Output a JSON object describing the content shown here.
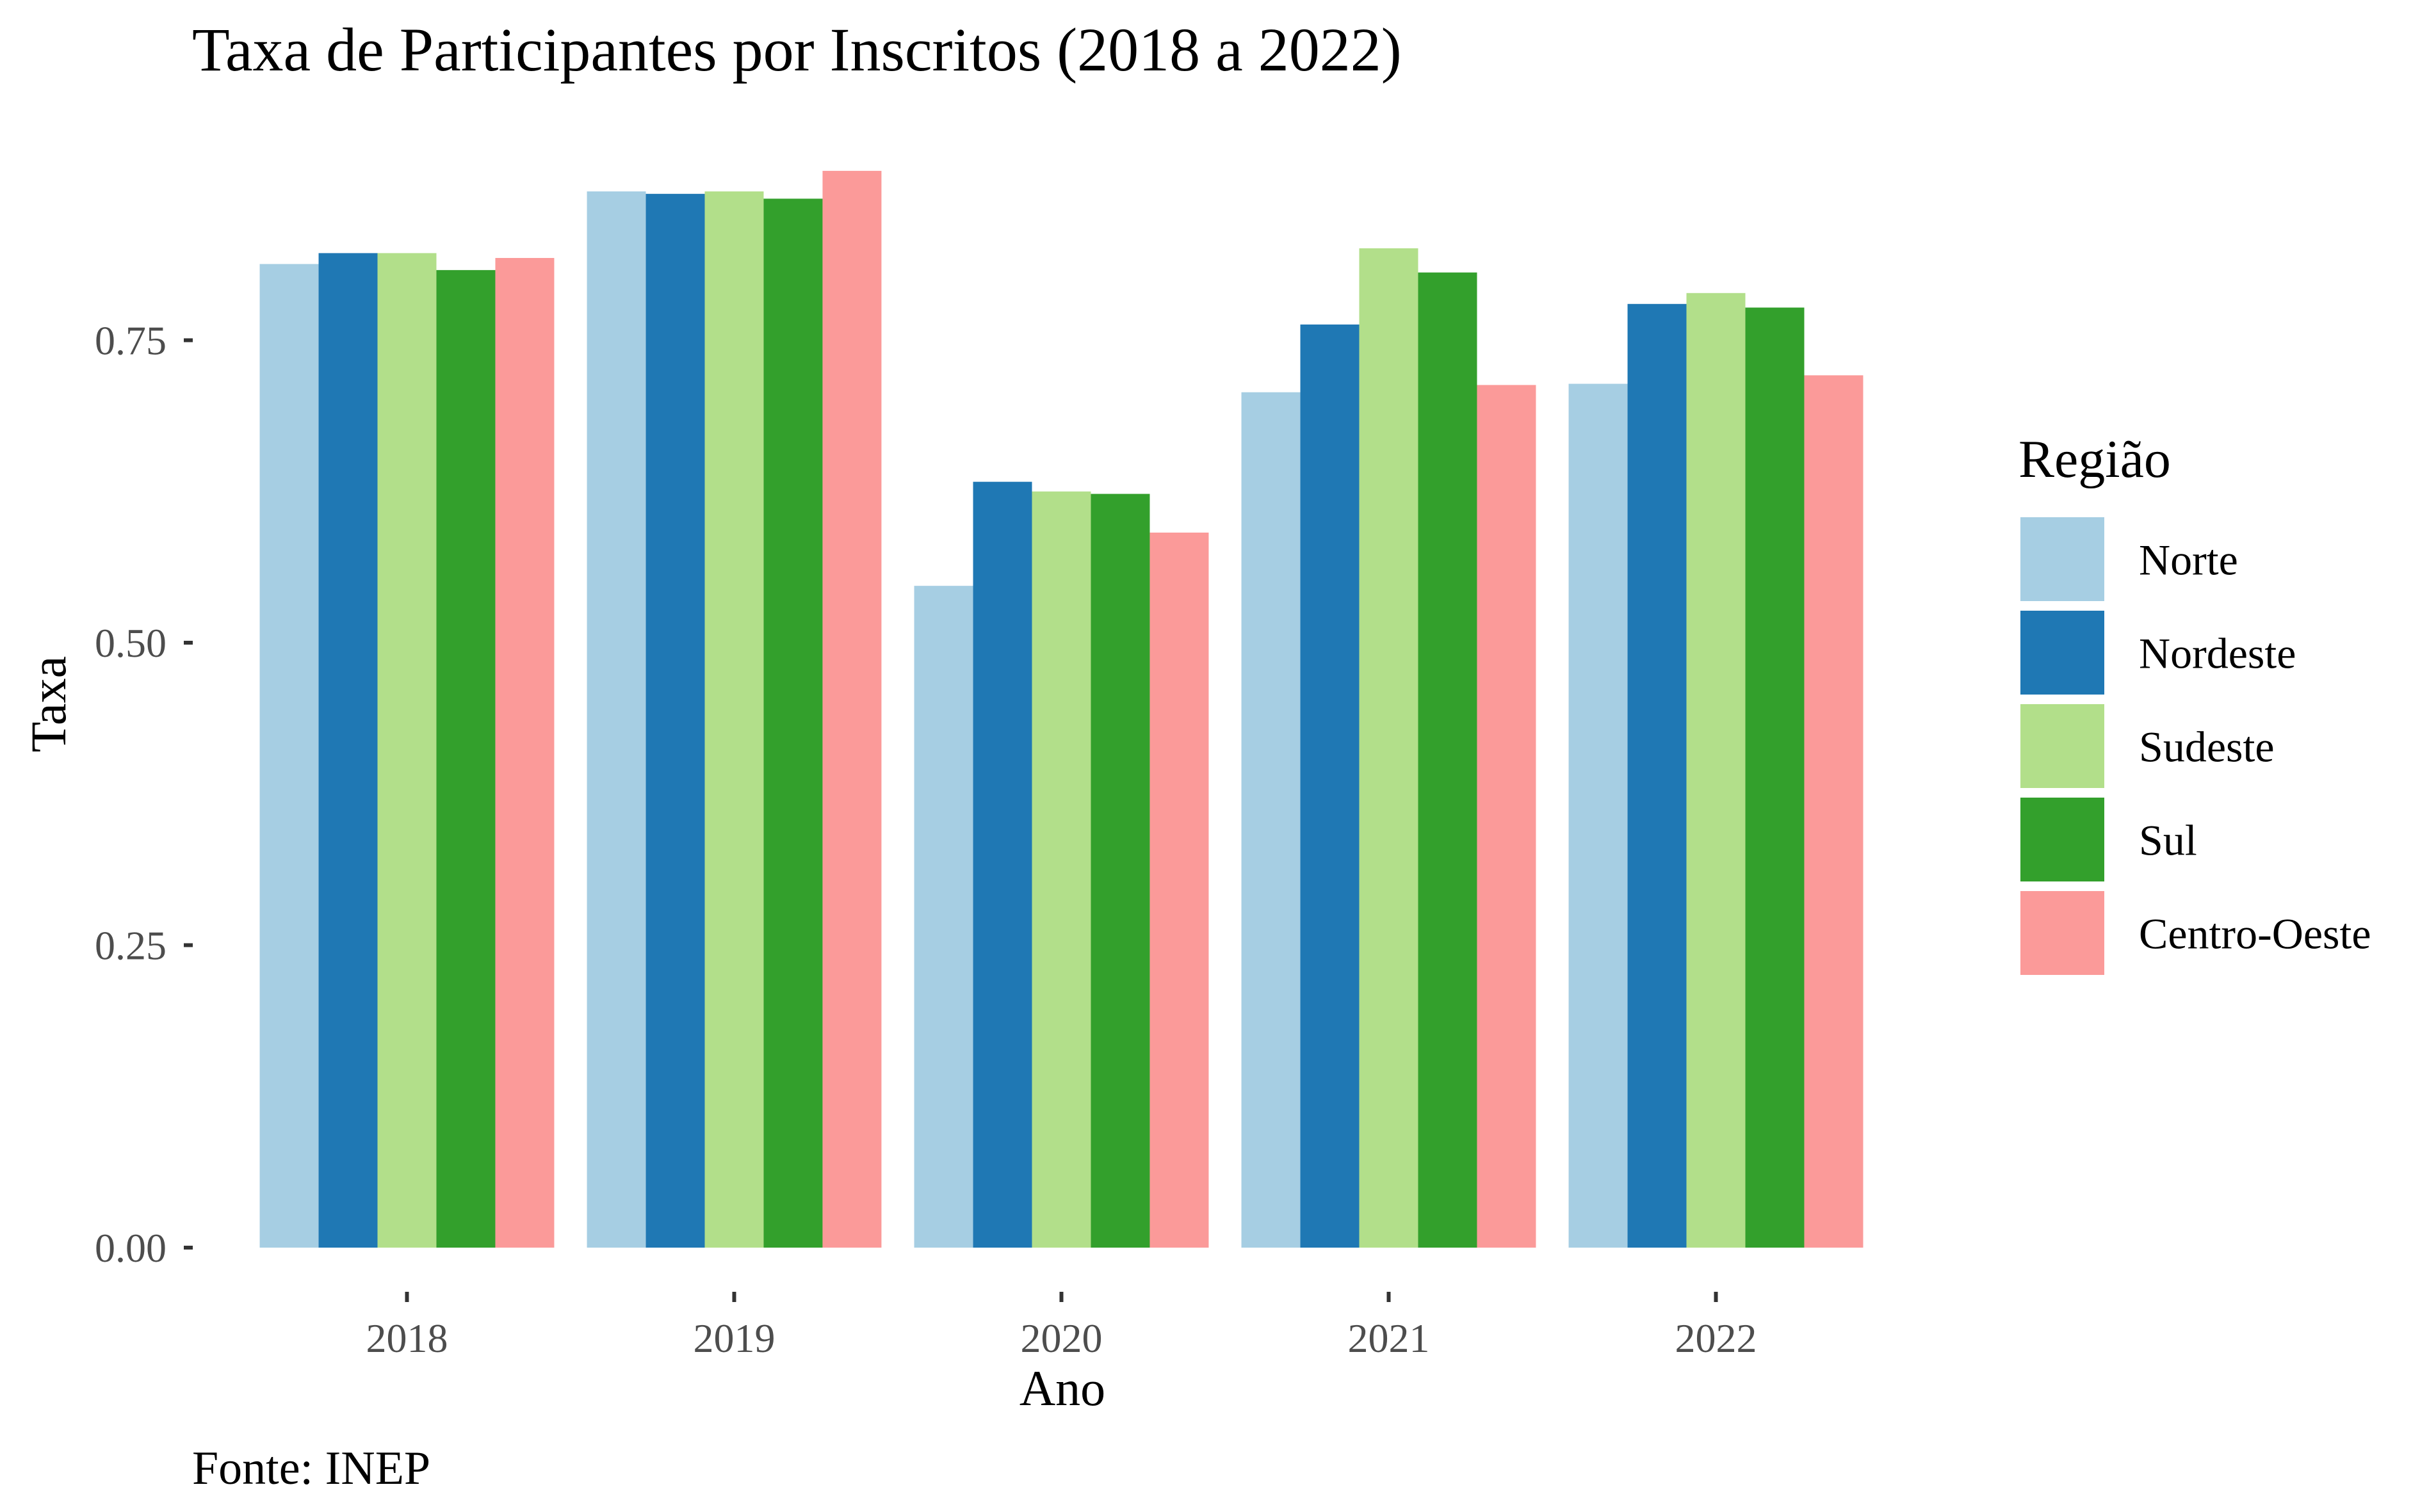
{
  "chart_data": {
    "type": "bar",
    "title": "Taxa de Participantes por Inscritos (2018 a 2022)",
    "xlabel": "Ano",
    "ylabel": "Taxa",
    "caption": "Fonte: INEP",
    "categories": [
      "2018",
      "2019",
      "2020",
      "2021",
      "2022"
    ],
    "ylim": [
      0,
      0.92
    ],
    "yticks": [
      {
        "value": 0.0,
        "label": "0.00"
      },
      {
        "value": 0.25,
        "label": "0.25"
      },
      {
        "value": 0.5,
        "label": "0.50"
      },
      {
        "value": 0.75,
        "label": "0.75"
      }
    ],
    "grid": false,
    "legend": {
      "title": "Região",
      "position": "right"
    },
    "series": [
      {
        "name": "Norte",
        "color": "#a6cee3",
        "values": [
          0.813,
          0.873,
          0.547,
          0.707,
          0.714
        ]
      },
      {
        "name": "Nordeste",
        "color": "#1f78b4",
        "values": [
          0.822,
          0.871,
          0.633,
          0.763,
          0.78
        ]
      },
      {
        "name": "Sudeste",
        "color": "#b2df8a",
        "values": [
          0.822,
          0.873,
          0.625,
          0.826,
          0.789
        ]
      },
      {
        "name": "Sul",
        "color": "#33a02c",
        "values": [
          0.808,
          0.867,
          0.623,
          0.806,
          0.777
        ]
      },
      {
        "name": "Centro-Oeste",
        "color": "#fb9a99",
        "values": [
          0.818,
          0.89,
          0.591,
          0.713,
          0.721
        ]
      }
    ]
  }
}
